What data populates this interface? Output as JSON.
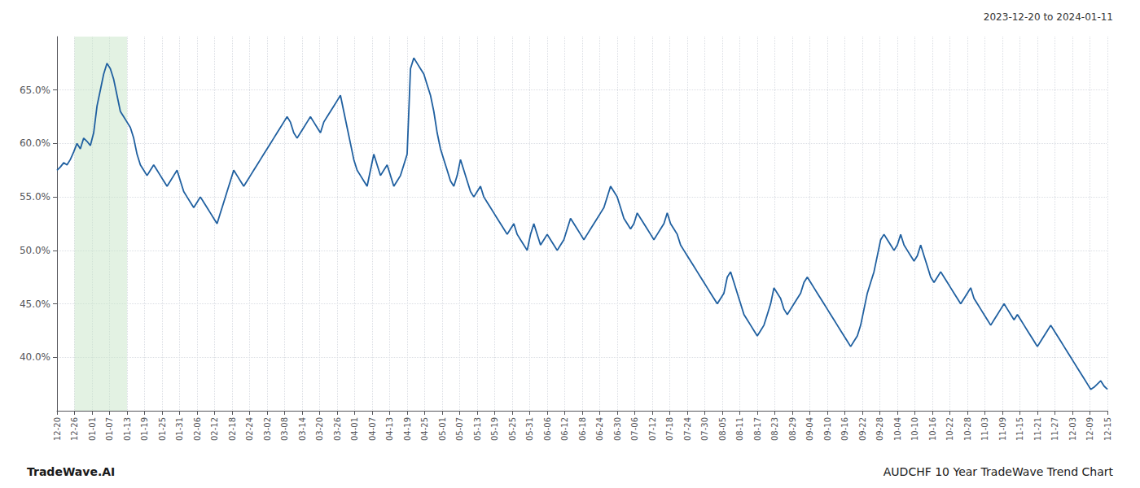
{
  "chart_data": {
    "type": "line",
    "title": "AUDCHF 10 Year TradeWave Trend Chart",
    "subtitle": "2023-12-20 to 2024-01-11",
    "annotations": [
      "TradeWave.AI"
    ],
    "color": "#2060a0",
    "grid": true,
    "xlim": [
      0,
      315
    ],
    "xticks": [
      {
        "value": 0,
        "label": "12-20"
      },
      {
        "value": 5.25,
        "label": "12-26"
      },
      {
        "value": 10.5,
        "label": "01-01"
      },
      {
        "value": 15.75,
        "label": "01-07"
      },
      {
        "value": 21,
        "label": "01-13"
      },
      {
        "value": 26.25,
        "label": "01-19"
      },
      {
        "value": 31.5,
        "label": "01-25"
      },
      {
        "value": 36.75,
        "label": "01-31"
      },
      {
        "value": 42,
        "label": "02-06"
      },
      {
        "value": 47.25,
        "label": "02-12"
      },
      {
        "value": 52.5,
        "label": "02-18"
      },
      {
        "value": 57.75,
        "label": "02-24"
      },
      {
        "value": 63,
        "label": "03-02"
      },
      {
        "value": 68.25,
        "label": "03-08"
      },
      {
        "value": 73.5,
        "label": "03-14"
      },
      {
        "value": 78.75,
        "label": "03-20"
      },
      {
        "value": 84,
        "label": "03-26"
      },
      {
        "value": 89.25,
        "label": "04-01"
      },
      {
        "value": 94.5,
        "label": "04-07"
      },
      {
        "value": 99.75,
        "label": "04-13"
      },
      {
        "value": 105,
        "label": "04-19"
      },
      {
        "value": 110.25,
        "label": "04-25"
      },
      {
        "value": 115.5,
        "label": "05-01"
      },
      {
        "value": 120.75,
        "label": "05-07"
      },
      {
        "value": 126,
        "label": "05-13"
      },
      {
        "value": 131.25,
        "label": "05-19"
      },
      {
        "value": 136.5,
        "label": "05-25"
      },
      {
        "value": 141.75,
        "label": "05-31"
      },
      {
        "value": 147,
        "label": "06-06"
      },
      {
        "value": 152.25,
        "label": "06-12"
      },
      {
        "value": 157.5,
        "label": "06-18"
      },
      {
        "value": 162.75,
        "label": "06-24"
      },
      {
        "value": 168,
        "label": "06-30"
      },
      {
        "value": 173.25,
        "label": "07-06"
      },
      {
        "value": 178.5,
        "label": "07-12"
      },
      {
        "value": 183.75,
        "label": "07-18"
      },
      {
        "value": 189,
        "label": "07-24"
      },
      {
        "value": 194.25,
        "label": "07-30"
      },
      {
        "value": 199.5,
        "label": "08-05"
      },
      {
        "value": 204.75,
        "label": "08-11"
      },
      {
        "value": 210,
        "label": "08-17"
      },
      {
        "value": 215.25,
        "label": "08-23"
      },
      {
        "value": 220.5,
        "label": "08-29"
      },
      {
        "value": 225.75,
        "label": "09-04"
      },
      {
        "value": 231,
        "label": "09-10"
      },
      {
        "value": 236.25,
        "label": "09-16"
      },
      {
        "value": 241.5,
        "label": "09-22"
      },
      {
        "value": 246.75,
        "label": "09-28"
      },
      {
        "value": 252,
        "label": "10-04"
      },
      {
        "value": 257.25,
        "label": "10-10"
      },
      {
        "value": 262.5,
        "label": "10-16"
      },
      {
        "value": 267.75,
        "label": "10-22"
      },
      {
        "value": 273,
        "label": "10-28"
      },
      {
        "value": 278.25,
        "label": "11-03"
      },
      {
        "value": 283.5,
        "label": "11-09"
      },
      {
        "value": 288.75,
        "label": "11-15"
      },
      {
        "value": 294,
        "label": "11-21"
      },
      {
        "value": 299.25,
        "label": "11-27"
      },
      {
        "value": 304.5,
        "label": "12-03"
      },
      {
        "value": 309.75,
        "label": "12-09"
      },
      {
        "value": 315,
        "label": "12-15"
      }
    ],
    "ylim": [
      35.0,
      70.0
    ],
    "yticks": [
      {
        "value": 40.0,
        "label": "40.0%"
      },
      {
        "value": 45.0,
        "label": "45.0%"
      },
      {
        "value": 50.0,
        "label": "50.0%"
      },
      {
        "value": 55.0,
        "label": "55.0%"
      },
      {
        "value": 60.0,
        "label": "60.0%"
      },
      {
        "value": 65.0,
        "label": "65.0%"
      }
    ],
    "shade": {
      "start": 5.25,
      "end": 21,
      "color": "#c8e6c8"
    },
    "values": [
      57.5,
      57.8,
      58.2,
      58.0,
      58.5,
      59.2,
      60.0,
      59.5,
      60.5,
      60.2,
      59.8,
      61.0,
      63.5,
      65.0,
      66.5,
      67.5,
      67.0,
      66.0,
      64.5,
      63.0,
      62.5,
      62.0,
      61.5,
      60.5,
      59.0,
      58.0,
      57.5,
      57.0,
      57.5,
      58.0,
      57.5,
      57.0,
      56.5,
      56.0,
      56.5,
      57.0,
      57.5,
      56.5,
      55.5,
      55.0,
      54.5,
      54.0,
      54.5,
      55.0,
      54.5,
      54.0,
      53.5,
      53.0,
      52.5,
      53.5,
      54.5,
      55.5,
      56.5,
      57.5,
      57.0,
      56.5,
      56.0,
      56.5,
      57.0,
      57.5,
      58.0,
      58.5,
      59.0,
      59.5,
      60.0,
      60.5,
      61.0,
      61.5,
      62.0,
      62.5,
      62.0,
      61.0,
      60.5,
      61.0,
      61.5,
      62.0,
      62.5,
      62.0,
      61.5,
      61.0,
      62.0,
      62.5,
      63.0,
      63.5,
      64.0,
      64.5,
      63.0,
      61.5,
      60.0,
      58.5,
      57.5,
      57.0,
      56.5,
      56.0,
      57.5,
      59.0,
      58.0,
      57.0,
      57.5,
      58.0,
      57.0,
      56.0,
      56.5,
      57.0,
      58.0,
      59.0,
      67.0,
      68.0,
      67.5,
      67.0,
      66.5,
      65.5,
      64.5,
      63.0,
      61.0,
      59.5,
      58.5,
      57.5,
      56.5,
      56.0,
      57.0,
      58.5,
      57.5,
      56.5,
      55.5,
      55.0,
      55.5,
      56.0,
      55.0,
      54.5,
      54.0,
      53.5,
      53.0,
      52.5,
      52.0,
      51.5,
      52.0,
      52.5,
      51.5,
      51.0,
      50.5,
      50.0,
      51.5,
      52.5,
      51.5,
      50.5,
      51.0,
      51.5,
      51.0,
      50.5,
      50.0,
      50.5,
      51.0,
      52.0,
      53.0,
      52.5,
      52.0,
      51.5,
      51.0,
      51.5,
      52.0,
      52.5,
      53.0,
      53.5,
      54.0,
      55.0,
      56.0,
      55.5,
      55.0,
      54.0,
      53.0,
      52.5,
      52.0,
      52.5,
      53.5,
      53.0,
      52.5,
      52.0,
      51.5,
      51.0,
      51.5,
      52.0,
      52.5,
      53.5,
      52.5,
      52.0,
      51.5,
      50.5,
      50.0,
      49.5,
      49.0,
      48.5,
      48.0,
      47.5,
      47.0,
      46.5,
      46.0,
      45.5,
      45.0,
      45.5,
      46.0,
      47.5,
      48.0,
      47.0,
      46.0,
      45.0,
      44.0,
      43.5,
      43.0,
      42.5,
      42.0,
      42.5,
      43.0,
      44.0,
      45.0,
      46.5,
      46.0,
      45.5,
      44.5,
      44.0,
      44.5,
      45.0,
      45.5,
      46.0,
      47.0,
      47.5,
      47.0,
      46.5,
      46.0,
      45.5,
      45.0,
      44.5,
      44.0,
      43.5,
      43.0,
      42.5,
      42.0,
      41.5,
      41.0,
      41.5,
      42.0,
      43.0,
      44.5,
      46.0,
      47.0,
      48.0,
      49.5,
      51.0,
      51.5,
      51.0,
      50.5,
      50.0,
      50.5,
      51.5,
      50.5,
      50.0,
      49.5,
      49.0,
      49.5,
      50.5,
      49.5,
      48.5,
      47.5,
      47.0,
      47.5,
      48.0,
      47.5,
      47.0,
      46.5,
      46.0,
      45.5,
      45.0,
      45.5,
      46.0,
      46.5,
      45.5,
      45.0,
      44.5,
      44.0,
      43.5,
      43.0,
      43.5,
      44.0,
      44.5,
      45.0,
      44.5,
      44.0,
      43.5,
      44.0,
      43.5,
      43.0,
      42.5,
      42.0,
      41.5,
      41.0,
      41.5,
      42.0,
      42.5,
      43.0,
      42.5,
      42.0,
      41.5,
      41.0,
      40.5,
      40.0,
      39.5,
      39.0,
      38.5,
      38.0,
      37.5,
      37.0,
      37.2,
      37.5,
      37.8,
      37.3,
      37.0
    ]
  }
}
